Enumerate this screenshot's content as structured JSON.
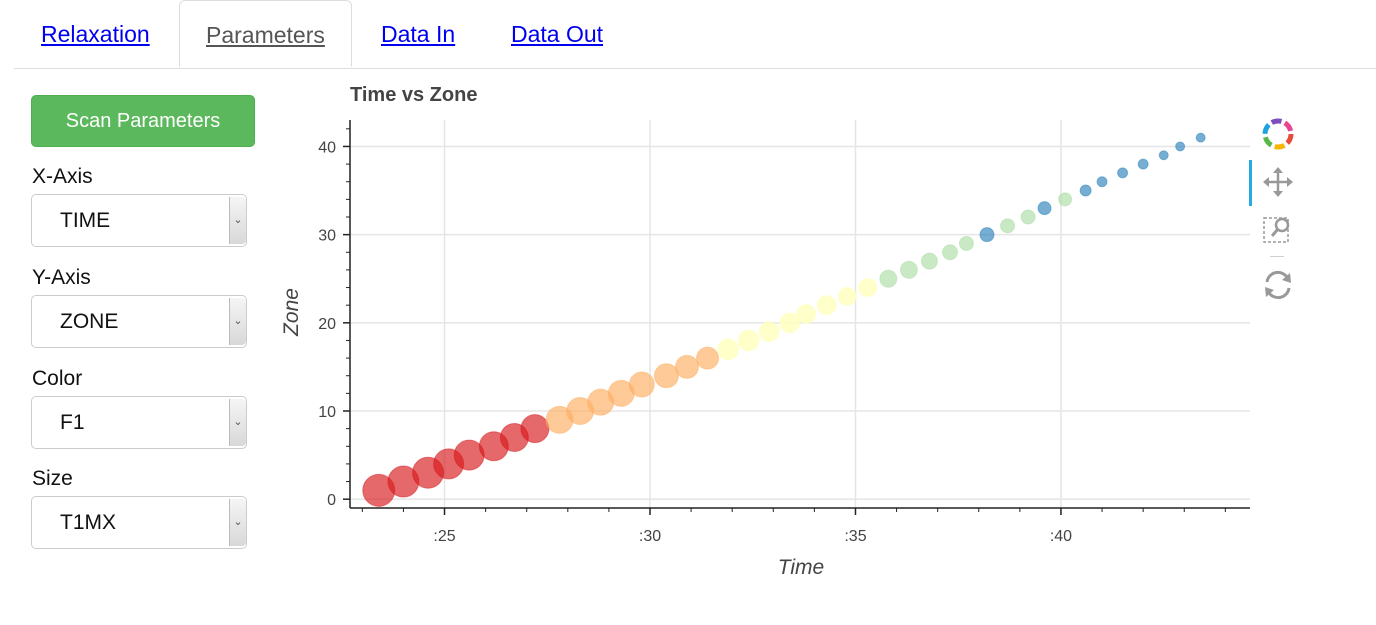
{
  "tabs": [
    {
      "label": "Relaxation",
      "active": false
    },
    {
      "label": "Parameters",
      "active": true
    },
    {
      "label": "Data In",
      "active": false
    },
    {
      "label": "Data Out",
      "active": false
    }
  ],
  "sidebar": {
    "scan_button": "Scan Parameters",
    "x_axis": {
      "label": "X-Axis",
      "value": "TIME"
    },
    "y_axis": {
      "label": "Y-Axis",
      "value": "ZONE"
    },
    "color": {
      "label": "Color",
      "value": "F1"
    },
    "size": {
      "label": "Size",
      "value": "T1MX"
    }
  },
  "toolbar": {
    "icons": [
      "bokeh-logo-icon",
      "pan-icon",
      "box-zoom-icon",
      "reset-icon"
    ],
    "active_tool": "pan-icon"
  },
  "colors": {
    "accent_green": "#5cb85c",
    "active_tool": "#26aae1"
  },
  "chart_data": {
    "type": "scatter",
    "title": "Time vs Zone",
    "xlabel": "Time",
    "ylabel": "Zone",
    "x_ticks": [
      ":25",
      ":30",
      ":35",
      ":40"
    ],
    "x_tick_values": [
      25,
      30,
      35,
      40
    ],
    "y_ticks": [
      "0",
      "10",
      "20",
      "30",
      "40"
    ],
    "y_tick_values": [
      0,
      10,
      20,
      30,
      40
    ],
    "xlim": [
      22.7,
      44.6
    ],
    "ylim": [
      -1,
      43
    ],
    "grid": true,
    "x": [
      23.4,
      24.0,
      24.6,
      25.1,
      25.6,
      26.2,
      26.7,
      27.2,
      27.8,
      28.3,
      28.8,
      29.3,
      29.8,
      30.4,
      30.9,
      31.4,
      31.9,
      32.4,
      32.9,
      33.4,
      33.8,
      34.3,
      34.8,
      35.3,
      35.8,
      36.3,
      36.8,
      37.3,
      37.7,
      38.2,
      38.7,
      39.2,
      39.6,
      40.1,
      40.6,
      41.0,
      41.5,
      42.0,
      42.5,
      42.9,
      43.4
    ],
    "y": [
      1,
      2,
      3,
      4,
      5,
      6,
      7,
      8,
      9,
      10,
      11,
      12,
      13,
      14,
      15,
      16,
      17,
      18,
      19,
      20,
      21,
      22,
      23,
      24,
      25,
      26,
      27,
      28,
      29,
      30,
      31,
      32,
      33,
      34,
      35,
      36,
      37,
      38,
      39,
      40,
      41
    ],
    "sizes": [
      32,
      31,
      31,
      30,
      30,
      29,
      28,
      28,
      27,
      27,
      26,
      26,
      25,
      24,
      23,
      22,
      21,
      21,
      20,
      20,
      19,
      19,
      18,
      18,
      17,
      17,
      16,
      15,
      14,
      14,
      14,
      14,
      13,
      13,
      11,
      10,
      10,
      10,
      9,
      9,
      9
    ],
    "colors": [
      "#d7191c",
      "#d7191c",
      "#d7191c",
      "#d7191c",
      "#d7191c",
      "#d7191c",
      "#d7191c",
      "#d7191c",
      "#fdae61",
      "#fdae61",
      "#fdae61",
      "#fdae61",
      "#fdae61",
      "#fdae61",
      "#fdae61",
      "#fdae61",
      "#ffffbf",
      "#ffffbf",
      "#ffffbf",
      "#ffffbf",
      "#ffffbf",
      "#ffffbf",
      "#ffffbf",
      "#ffffbf",
      "#abdda4",
      "#abdda4",
      "#abdda4",
      "#abdda4",
      "#abdda4",
      "#2b83ba",
      "#abdda4",
      "#abdda4",
      "#2b83ba",
      "#abdda4",
      "#2b83ba",
      "#2b83ba",
      "#2b83ba",
      "#2b83ba",
      "#2b83ba",
      "#2b83ba",
      "#2b83ba"
    ]
  }
}
